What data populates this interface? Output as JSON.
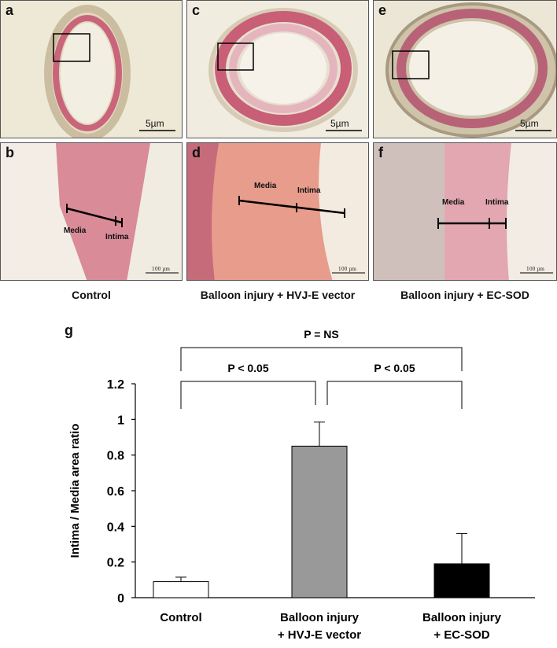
{
  "panels": {
    "a": {
      "label": "a",
      "scale": "5µm"
    },
    "c": {
      "label": "c",
      "scale": "5µm"
    },
    "e": {
      "label": "e",
      "scale": "5µm"
    },
    "b": {
      "label": "b",
      "scale": "100 µm",
      "media": "Media",
      "intima": "Intima"
    },
    "d": {
      "label": "d",
      "scale": "100 µm",
      "media": "Media",
      "intima": "Intima"
    },
    "f": {
      "label": "f",
      "scale": "100 µm",
      "media": "Media",
      "intima": "Intima"
    }
  },
  "captions": {
    "control": "Control",
    "hvj": "Balloon injury + HVJ-E vector",
    "ecsod": "Balloon injury + EC-SOD"
  },
  "colors": {
    "control_bar": "#ffffff",
    "hvj_bar": "#999999",
    "ecsod_bar": "#000000",
    "tissue_pink": "#d9838f",
    "adventitia": "#e8dcc4"
  },
  "chart_data": {
    "type": "bar",
    "panel_label": "g",
    "ylabel": "Intima / Media area ratio",
    "ylim": [
      0,
      1.2
    ],
    "yticks": [
      "0",
      "0.2",
      "0.4",
      "0.6",
      "0.8",
      "1",
      "1.2"
    ],
    "categories": [
      [
        "Control"
      ],
      [
        "Balloon injury",
        "+ HVJ-E vector"
      ],
      [
        "Balloon injury",
        "+ EC-SOD"
      ]
    ],
    "values": [
      0.09,
      0.85,
      0.19
    ],
    "errors": [
      0.025,
      0.135,
      0.17
    ],
    "comparisons": [
      {
        "from": 0,
        "to": 2,
        "label": "P = NS"
      },
      {
        "from": 0,
        "to": 1,
        "label": "P < 0.05"
      },
      {
        "from": 1,
        "to": 2,
        "label": "P < 0.05"
      }
    ]
  }
}
